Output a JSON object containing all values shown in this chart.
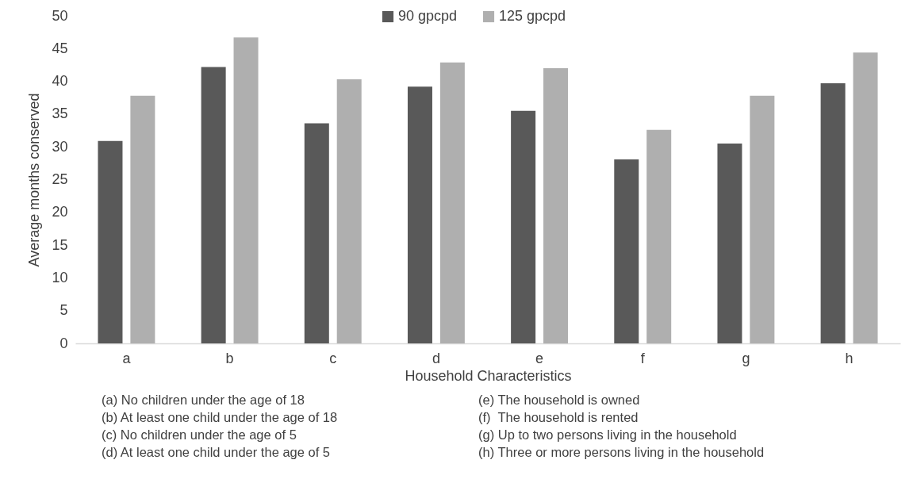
{
  "chart_data": {
    "type": "bar",
    "xlabel": "Household Characteristics",
    "ylabel": "Average months conserved",
    "categories": [
      "a",
      "b",
      "c",
      "d",
      "e",
      "f",
      "g",
      "h"
    ],
    "series": [
      {
        "name": "90 gpcpd",
        "color": "#595959",
        "values": [
          30.9,
          42.2,
          33.6,
          39.2,
          35.5,
          28.1,
          30.5,
          39.7
        ]
      },
      {
        "name": "125 gpcpd",
        "color": "#afafaf",
        "values": [
          37.8,
          46.7,
          40.3,
          42.9,
          42.0,
          32.6,
          37.8,
          44.4
        ]
      }
    ],
    "ylim": [
      0,
      50
    ],
    "yticks": [
      0,
      5,
      10,
      15,
      20,
      25,
      30,
      35,
      40,
      45,
      50
    ],
    "grid": false,
    "legend": "top",
    "annotations": [
      "(a) No children under the age of 18",
      "(b) At least one child under the age of 18",
      "(c) No children under the age of 5",
      "(d) At least one child under the age of 5",
      "(e) The household is owned",
      "(f)  The household is rented",
      "(g) Up to two persons living in the household",
      "(h) Three or more persons living in the household"
    ]
  }
}
